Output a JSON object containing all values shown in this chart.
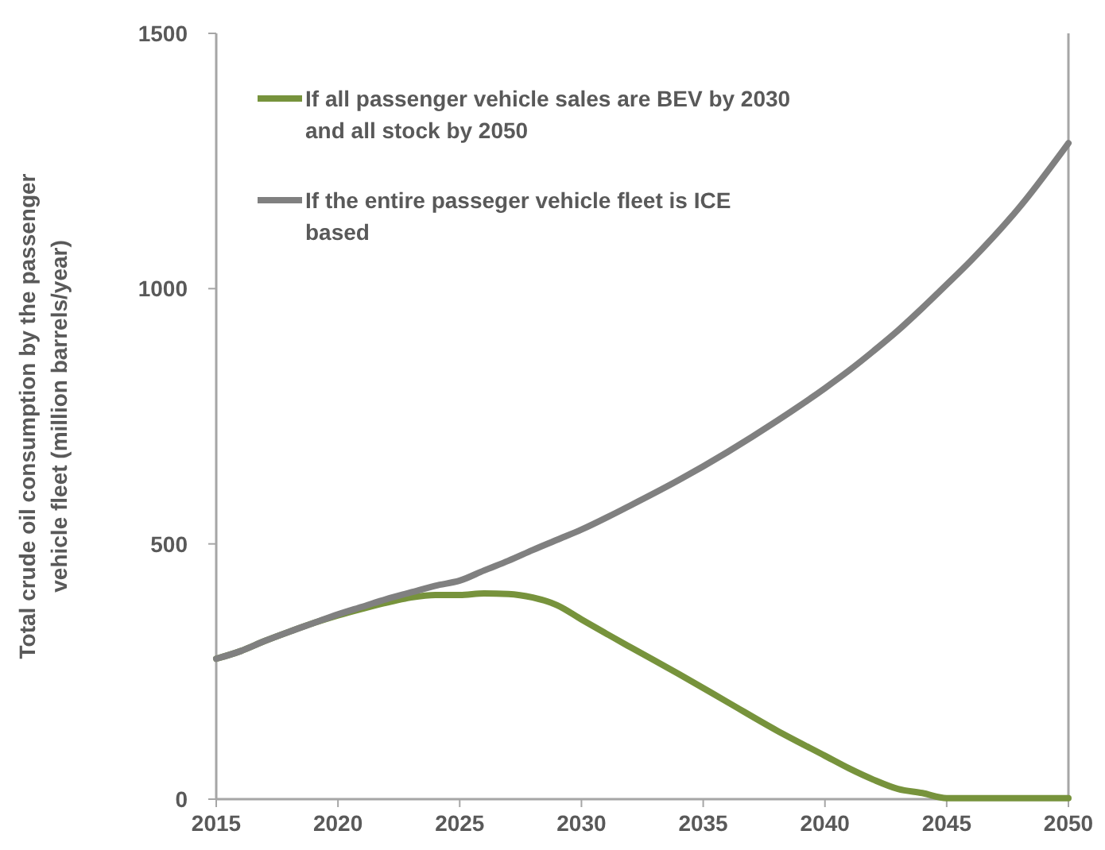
{
  "chart_data": {
    "type": "line",
    "ylabel": "Total crude oil consumption by the passenger vehicle fleet (million barrels/year)",
    "x": [
      2015,
      2016,
      2017,
      2018,
      2019,
      2020,
      2021,
      2022,
      2023,
      2024,
      2025,
      2026,
      2027,
      2028,
      2029,
      2030,
      2032,
      2034,
      2036,
      2038,
      2040,
      2041,
      2042,
      2043,
      2044,
      2045,
      2046,
      2048,
      2050
    ],
    "series": [
      {
        "name": "If all passenger vehicle sales are BEV by 2030 and all stock by 2050",
        "color": "#77933c",
        "values": [
          275,
          290,
          310,
          328,
          345,
          360,
          373,
          385,
          395,
          400,
          400,
          403,
          402,
          395,
          380,
          352,
          298,
          245,
          190,
          135,
          85,
          60,
          38,
          20,
          12,
          2,
          2,
          2,
          2
        ]
      },
      {
        "name": "If the entire passeger vehicle fleet is ICE based",
        "color": "#808080",
        "values": [
          275,
          290,
          310,
          328,
          345,
          362,
          377,
          392,
          405,
          418,
          428,
          448,
          467,
          488,
          508,
          528,
          575,
          625,
          680,
          740,
          805,
          840,
          878,
          918,
          962,
          1008,
          1055,
          1160,
          1285
        ]
      }
    ],
    "xlim": [
      2015,
      2050
    ],
    "ylim": [
      0,
      1500
    ],
    "xticks": [
      2015,
      2020,
      2025,
      2030,
      2035,
      2040,
      2045,
      2050
    ],
    "yticks": [
      0,
      500,
      1000,
      1500
    ],
    "grid": false,
    "legend": "top left",
    "line_style": "solid",
    "marker": "none"
  }
}
